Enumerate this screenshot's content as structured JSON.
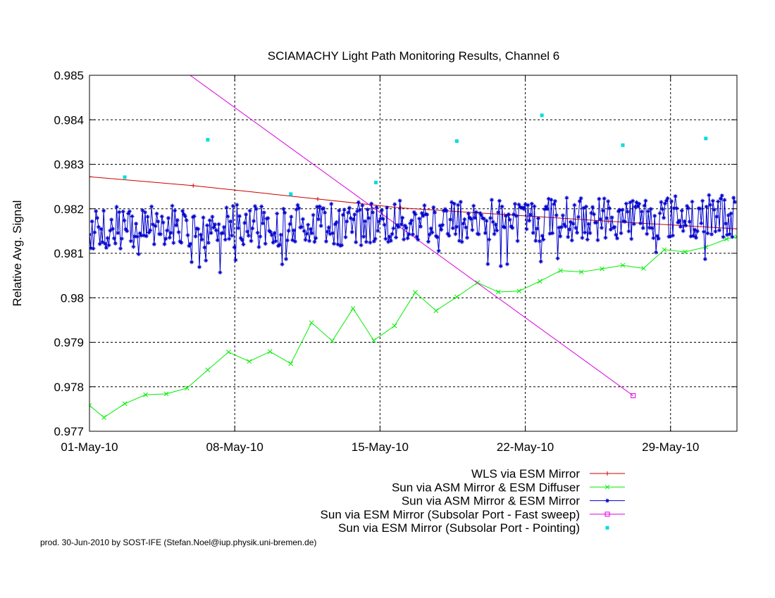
{
  "chart_data": {
    "type": "line",
    "title": "SCIAMACHY Light Path Monitoring Results, Channel 6",
    "xlabel": "",
    "ylabel": "Relative Avg. Signal",
    "x_axis": {
      "unit": "day of May 2010",
      "range": [
        1,
        32.2
      ],
      "ticks": [
        {
          "x": 1,
          "label": "01-May-10"
        },
        {
          "x": 8,
          "label": "08-May-10"
        },
        {
          "x": 15,
          "label": "15-May-10"
        },
        {
          "x": 22,
          "label": "22-May-10"
        },
        {
          "x": 29,
          "label": "29-May-10"
        }
      ]
    },
    "y_axis": {
      "range": [
        0.977,
        0.985
      ],
      "ticks": [
        0.977,
        0.978,
        0.979,
        0.98,
        0.981,
        0.982,
        0.983,
        0.984,
        0.985
      ],
      "tick_labels": [
        "0.977",
        "0.978",
        "0.979",
        "0.98",
        "0.981",
        "0.982",
        "0.983",
        "0.984",
        "0.985"
      ]
    },
    "grid": true,
    "legend_position": "bottom-right, below plot",
    "series": [
      {
        "name": "WLS via ESM Mirror",
        "color": "#cc0000",
        "marker": "plus",
        "points": [
          [
            1,
            0.98272
          ],
          [
            6,
            0.98252
          ],
          [
            12,
            0.98222
          ],
          [
            16,
            0.98202
          ],
          [
            21,
            0.98187
          ],
          [
            26,
            0.98172
          ],
          [
            32.2,
            0.98155
          ]
        ]
      },
      {
        "name": "Sun via ASM Mirror & ESM Diffuser",
        "color": "#00ee00",
        "marker": "x",
        "points": [
          [
            1,
            0.97758
          ],
          [
            1.7,
            0.97731
          ],
          [
            2.7,
            0.97762
          ],
          [
            3.7,
            0.97782
          ],
          [
            4.7,
            0.97784
          ],
          [
            5.7,
            0.97797
          ],
          [
            6.7,
            0.97838
          ],
          [
            7.7,
            0.97878
          ],
          [
            8.7,
            0.97857
          ],
          [
            9.7,
            0.97879
          ],
          [
            10.7,
            0.97852
          ],
          [
            11.7,
            0.97944
          ],
          [
            12.7,
            0.97903
          ],
          [
            13.7,
            0.97976
          ],
          [
            14.7,
            0.97904
          ],
          [
            15.7,
            0.97937
          ],
          [
            16.7,
            0.98012
          ],
          [
            17.7,
            0.97971
          ],
          [
            18.7,
            0.98002
          ],
          [
            19.7,
            0.98034
          ],
          [
            20.7,
            0.98013
          ],
          [
            21.7,
            0.98015
          ],
          [
            22.7,
            0.98037
          ],
          [
            23.7,
            0.98061
          ],
          [
            24.7,
            0.98058
          ],
          [
            25.7,
            0.98065
          ],
          [
            26.7,
            0.98073
          ],
          [
            27.7,
            0.98066
          ],
          [
            28.7,
            0.98108
          ],
          [
            29.7,
            0.98103
          ],
          [
            30.7,
            0.98114
          ],
          [
            31.7,
            0.98132
          ],
          [
            32.2,
            0.98137
          ]
        ]
      },
      {
        "name": "Sun via ASM Mirror & ESM Mirror",
        "color": "#0000cc",
        "marker": "star",
        "points": []
      },
      {
        "name": "Sun via ESM Mirror (Subsolar Port - Fast sweep)",
        "color": "#dd00dd",
        "marker": "box",
        "points": [
          [
            5.85,
            0.985
          ],
          [
            27.2,
            0.9778
          ]
        ]
      },
      {
        "name": "Sun via ESM Mirror (Subsolar Port - Pointing)",
        "color": "#00dddd",
        "marker": "filled-square",
        "points": [
          [
            2.7,
            0.98271
          ],
          [
            6.7,
            0.98355
          ],
          [
            10.7,
            0.98233
          ],
          [
            14.8,
            0.98259
          ],
          [
            18.7,
            0.98352
          ],
          [
            22.8,
            0.9841
          ],
          [
            26.7,
            0.98343
          ],
          [
            30.7,
            0.98358
          ]
        ]
      }
    ],
    "blue_series_pattern": {
      "x_start": 1,
      "x_end": 32.1,
      "count": 500,
      "base_start": 0.98155,
      "base_end": 0.98185,
      "amplitude": 0.0005
    }
  },
  "footer": "prod. 30-Jun-2010 by SOST-IFE (Stefan.Noel@iup.physik.uni-bremen.de)"
}
